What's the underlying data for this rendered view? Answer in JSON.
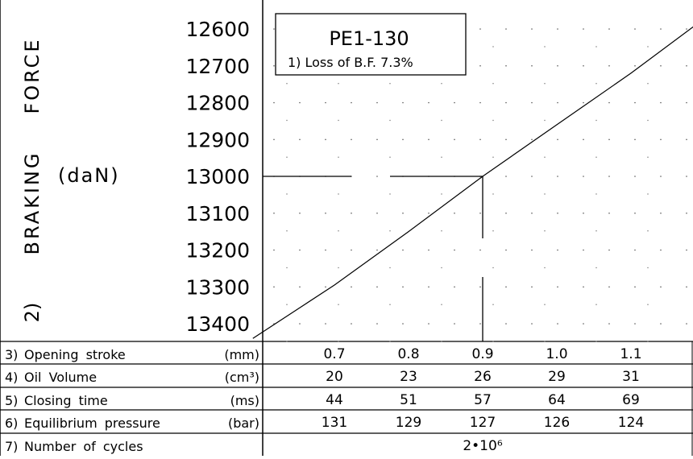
{
  "chart_data": {
    "type": "line",
    "title": "PE1-130",
    "annotation": "1) Loss of B.F. 7.3%",
    "ylabel_number": "2)",
    "ylabel_words": [
      "BRAKING",
      "FORCE"
    ],
    "ylabel_unit": "(daN)",
    "y_ticks": [
      "12600",
      "12700",
      "12800",
      "12900",
      "13000",
      "13100",
      "13200",
      "13300",
      "13400"
    ],
    "y_inverted": true,
    "ylim": [
      12600,
      13400
    ],
    "x_categories": [
      "0.7",
      "0.8",
      "0.9",
      "1.0",
      "1.1"
    ],
    "series": [
      {
        "x": [
          0.59,
          0.7,
          0.8,
          0.9,
          1.0,
          1.1,
          1.22
        ],
        "y": [
          13440,
          13295,
          13150,
          13000,
          12860,
          12720,
          12540
        ]
      }
    ],
    "reference": {
      "x": 0.9,
      "y": 13000
    },
    "grid": "dotted",
    "table": {
      "rows": [
        {
          "num": "3)",
          "label": "Opening stroke",
          "unit": "(mm)",
          "values": [
            "0.7",
            "0.8",
            "0.9",
            "1.0",
            "1.1"
          ]
        },
        {
          "num": "4)",
          "label": "Oil Volume",
          "unit": "(cm³)",
          "values": [
            "20",
            "23",
            "26",
            "29",
            "31"
          ]
        },
        {
          "num": "5)",
          "label": "Closing time",
          "unit": "(ms)",
          "values": [
            "44",
            "51",
            "57",
            "64",
            "69"
          ]
        },
        {
          "num": "6)",
          "label": "Equilibrium pressure",
          "unit": "(bar)",
          "values": [
            "131",
            "129",
            "127",
            "126",
            "124"
          ]
        },
        {
          "num": "7)",
          "label": "Number of cycles",
          "unit": "",
          "values": [
            "2•10⁶"
          ]
        }
      ]
    }
  }
}
